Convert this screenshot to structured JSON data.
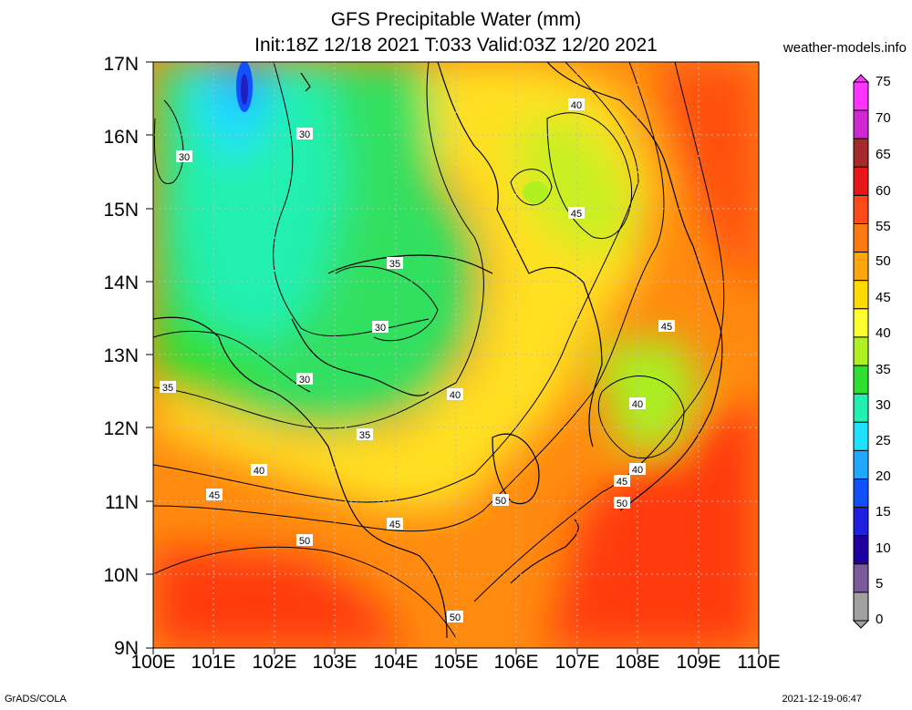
{
  "header": {
    "title_line1": "GFS Precipitable Water (mm)",
    "title_line2": "Init:18Z 12/18 2021 T:033 Valid:03Z 12/20 2021",
    "site": "weather-models.info"
  },
  "axes": {
    "lat_labels": [
      "17N",
      "16N",
      "15N",
      "14N",
      "13N",
      "12N",
      "11N",
      "10N",
      "9N"
    ],
    "lon_labels": [
      "100E",
      "101E",
      "102E",
      "103E",
      "104E",
      "105E",
      "106E",
      "107E",
      "108E",
      "109E",
      "110E"
    ]
  },
  "colorbar": {
    "labels": [
      "75",
      "70",
      "65",
      "60",
      "55",
      "50",
      "45",
      "40",
      "35",
      "30",
      "25",
      "20",
      "15",
      "10",
      "5",
      "0"
    ],
    "colors": [
      "#ff33ff",
      "#d028d0",
      "#a52a2a",
      "#e8181a",
      "#ff4a1a",
      "#ff7a10",
      "#ffa70a",
      "#ffd800",
      "#ffff30",
      "#b0f020",
      "#30e030",
      "#20f0b0",
      "#20e0ff",
      "#20a8ff",
      "#1050ff",
      "#2020e0",
      "#2000a0",
      "#7a5a9a",
      "#a0a0a0"
    ]
  },
  "contour_labels": [
    {
      "text": "30"
    },
    {
      "text": "30"
    },
    {
      "text": "30"
    },
    {
      "text": "30"
    },
    {
      "text": "35"
    },
    {
      "text": "35"
    },
    {
      "text": "35"
    },
    {
      "text": "40"
    },
    {
      "text": "40"
    },
    {
      "text": "40"
    },
    {
      "text": "40"
    },
    {
      "text": "40"
    },
    {
      "text": "45"
    },
    {
      "text": "45"
    },
    {
      "text": "45"
    },
    {
      "text": "45"
    },
    {
      "text": "45"
    },
    {
      "text": "50"
    },
    {
      "text": "50"
    },
    {
      "text": "50"
    },
    {
      "text": "50"
    }
  ],
  "footer": {
    "credit": "GrADS/COLA",
    "timestamp": "2021-12-19-06:47"
  }
}
